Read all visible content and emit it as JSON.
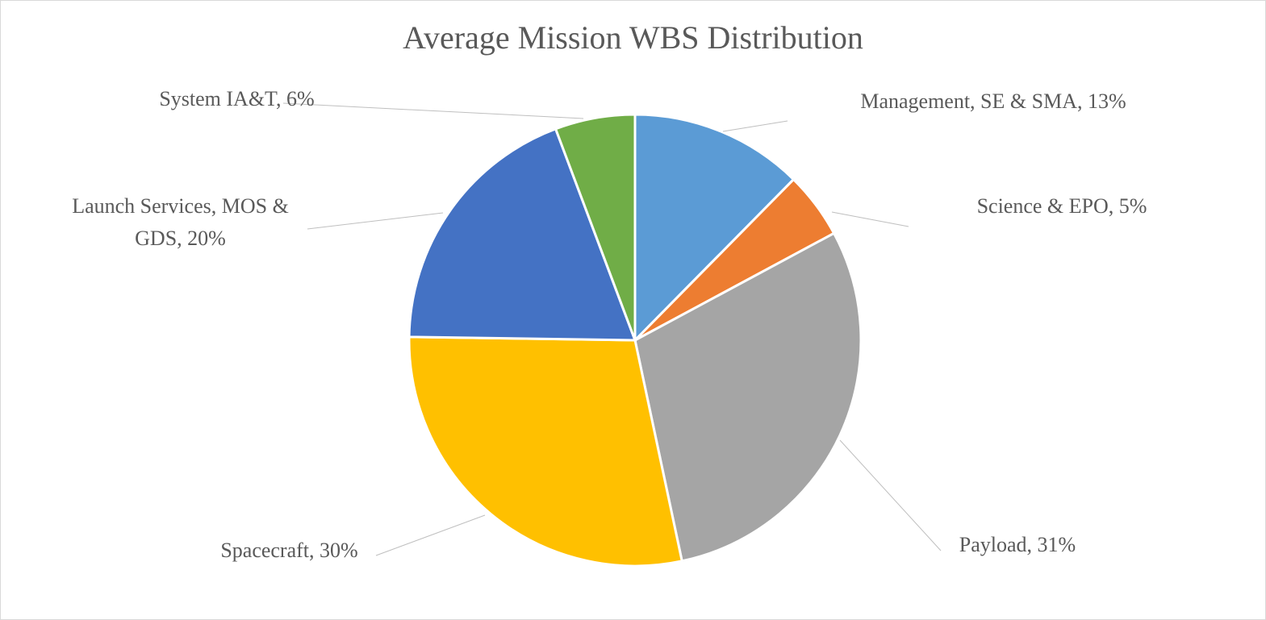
{
  "chart_data": {
    "type": "pie",
    "title": "Average Mission WBS Distribution",
    "categories": [
      "Management, SE & SMA",
      "Science & EPO",
      "Payload",
      "Spacecraft",
      "Launch Services, MOS & GDS",
      "System IA&T"
    ],
    "values": [
      13,
      5,
      31,
      30,
      20,
      6
    ],
    "value_labels": [
      "13%",
      "5%",
      "31%",
      "30%",
      "20%",
      "6%"
    ],
    "label_separator": ", ",
    "colors": [
      "#5b9bd5",
      "#ed7d31",
      "#a5a5a5",
      "#ffc000",
      "#4472c4",
      "#70ad47"
    ]
  }
}
